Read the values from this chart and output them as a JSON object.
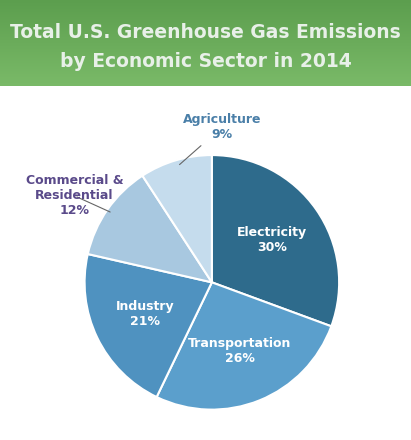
{
  "title_line1": "Total U.S. Greenhouse Gas Emissions",
  "title_line2": "by Economic Sector in 2014",
  "title_color": "#e8f0e8",
  "title_fontsize": 13.5,
  "title_bg_top": "#6aaa5a",
  "title_bg_bottom": "#7aba6a",
  "background_color": "#ffffff",
  "sectors": [
    "Electricity",
    "Transportation",
    "Industry",
    "Commercial &\nResidential",
    "Agriculture"
  ],
  "values": [
    30,
    26,
    21,
    12,
    9
  ],
  "colors": [
    "#2e6b8c",
    "#5b9ec9",
    "#5b9ec9",
    "#a8c8e0",
    "#c5dced"
  ],
  "inside_label_color": "#ffffff",
  "outside_label_color_agriculture": "#4a7fa8",
  "outside_label_color_commercial": "#5a4a8a",
  "startangle": 90,
  "wedge_edge_color": "#ffffff",
  "wedge_linewidth": 1.5,
  "industry_color": "#4a8ec0",
  "transport_color": "#5ba8d8"
}
